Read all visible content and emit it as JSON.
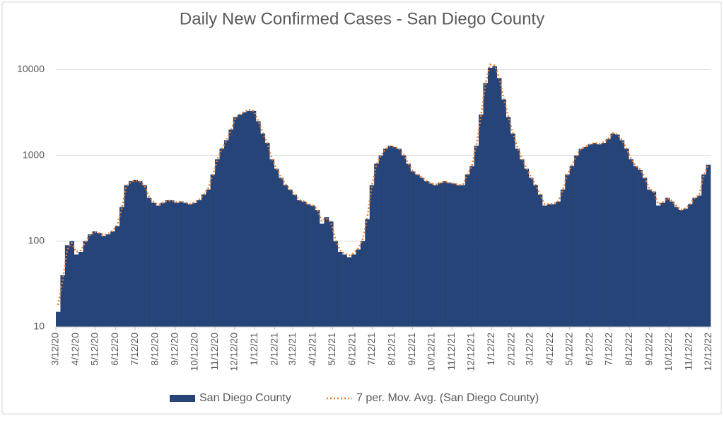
{
  "chart_data": {
    "type": "bar",
    "title": "Daily New Confirmed Cases - San Diego County",
    "log_scale": true,
    "grid": true,
    "legend": "bottom",
    "ylim": [
      10,
      20000
    ],
    "yticks": [
      10,
      100,
      1000,
      10000
    ],
    "xlim": [
      "3/12/20",
      "12/15/22"
    ],
    "xticks": [
      "3/12/20",
      "4/12/20",
      "5/12/20",
      "6/12/20",
      "7/12/20",
      "8/12/20",
      "9/12/20",
      "10/12/20",
      "11/12/20",
      "12/12/20",
      "1/12/21",
      "2/12/21",
      "3/12/21",
      "4/12/21",
      "5/12/21",
      "6/12/21",
      "7/12/21",
      "8/12/21",
      "9/12/21",
      "10/12/21",
      "11/12/21",
      "12/12/21",
      "1/12/22",
      "2/12/22",
      "3/12/22",
      "4/12/22",
      "5/12/22",
      "6/12/22",
      "7/12/22",
      "8/12/22",
      "9/12/22",
      "10/12/22",
      "11/12/22",
      "12/12/22"
    ],
    "x": [
      "3/12/20",
      "3/19/20",
      "3/26/20",
      "4/2/20",
      "4/9/20",
      "4/16/20",
      "4/23/20",
      "4/30/20",
      "5/7/20",
      "5/14/20",
      "5/21/20",
      "5/28/20",
      "6/4/20",
      "6/11/20",
      "6/18/20",
      "6/25/20",
      "7/2/20",
      "7/9/20",
      "7/16/20",
      "7/23/20",
      "7/30/20",
      "8/6/20",
      "8/13/20",
      "8/20/20",
      "8/27/20",
      "9/3/20",
      "9/10/20",
      "9/17/20",
      "9/24/20",
      "10/1/20",
      "10/8/20",
      "10/15/20",
      "10/22/20",
      "10/29/20",
      "11/5/20",
      "11/12/20",
      "11/19/20",
      "11/26/20",
      "12/3/20",
      "12/10/20",
      "12/17/20",
      "12/24/20",
      "12/31/20",
      "1/7/21",
      "1/14/21",
      "1/21/21",
      "1/28/21",
      "2/4/21",
      "2/11/21",
      "2/18/21",
      "2/25/21",
      "3/4/21",
      "3/11/21",
      "3/18/21",
      "3/25/21",
      "4/1/21",
      "4/8/21",
      "4/15/21",
      "4/22/21",
      "4/29/21",
      "5/6/21",
      "5/13/21",
      "5/20/21",
      "5/27/21",
      "6/3/21",
      "6/10/21",
      "6/17/21",
      "6/24/21",
      "7/1/21",
      "7/8/21",
      "7/15/21",
      "7/22/21",
      "7/29/21",
      "8/5/21",
      "8/12/21",
      "8/19/21",
      "8/26/21",
      "9/2/21",
      "9/9/21",
      "9/16/21",
      "9/23/21",
      "9/30/21",
      "10/7/21",
      "10/14/21",
      "10/21/21",
      "10/28/21",
      "11/4/21",
      "11/11/21",
      "11/18/21",
      "11/25/21",
      "12/2/21",
      "12/9/21",
      "12/16/21",
      "12/23/21",
      "12/30/21",
      "1/6/22",
      "1/13/22",
      "1/20/22",
      "1/27/22",
      "2/3/22",
      "2/10/22",
      "2/17/22",
      "2/24/22",
      "3/3/22",
      "3/10/22",
      "3/17/22",
      "3/24/22",
      "3/31/22",
      "4/7/22",
      "4/14/22",
      "4/21/22",
      "4/28/22",
      "5/5/22",
      "5/12/22",
      "5/19/22",
      "5/26/22",
      "6/2/22",
      "6/9/22",
      "6/16/22",
      "6/23/22",
      "6/30/22",
      "7/7/22",
      "7/14/22",
      "7/21/22",
      "7/28/22",
      "8/4/22",
      "8/11/22",
      "8/18/22",
      "8/25/22",
      "9/1/22",
      "9/8/22",
      "9/15/22",
      "9/22/22",
      "9/29/22",
      "10/6/22",
      "10/13/22",
      "10/20/22",
      "10/27/22",
      "11/3/22",
      "11/10/22",
      "11/17/22",
      "11/24/22",
      "12/1/22",
      "12/8/22"
    ],
    "series": [
      {
        "name": "San Diego County",
        "color": "#264478",
        "values": [
          15,
          40,
          90,
          100,
          70,
          75,
          100,
          120,
          130,
          125,
          115,
          120,
          130,
          150,
          250,
          450,
          500,
          520,
          500,
          450,
          320,
          280,
          260,
          280,
          300,
          300,
          280,
          290,
          280,
          270,
          280,
          300,
          350,
          400,
          600,
          900,
          1200,
          1500,
          2000,
          2800,
          3000,
          3200,
          3300,
          3300,
          2500,
          1800,
          1400,
          900,
          700,
          550,
          450,
          400,
          350,
          300,
          290,
          270,
          260,
          230,
          160,
          190,
          170,
          100,
          75,
          70,
          65,
          70,
          80,
          100,
          180,
          450,
          800,
          1000,
          1200,
          1300,
          1250,
          1200,
          1000,
          800,
          650,
          600,
          550,
          500,
          470,
          450,
          480,
          500,
          480,
          470,
          450,
          450,
          600,
          750,
          1300,
          3000,
          7000,
          10500,
          11000,
          8000,
          4500,
          2800,
          1800,
          1200,
          900,
          700,
          550,
          450,
          350,
          260,
          270,
          270,
          290,
          400,
          600,
          750,
          1000,
          1200,
          1250,
          1350,
          1400,
          1350,
          1400,
          1550,
          1800,
          1750,
          1500,
          1200,
          900,
          750,
          680,
          550,
          400,
          380,
          260,
          280,
          320,
          290,
          250,
          230,
          240,
          270,
          320,
          340,
          600,
          780
        ]
      },
      {
        "name": "7 per. Mov. Avg. (San Diego County)",
        "color": "#ed7d31",
        "values": [
          18,
          35,
          80,
          95,
          75,
          78,
          98,
          118,
          128,
          124,
          118,
          122,
          132,
          155,
          240,
          430,
          490,
          510,
          495,
          440,
          330,
          285,
          265,
          280,
          295,
          298,
          285,
          288,
          282,
          272,
          282,
          305,
          345,
          410,
          590,
          880,
          1180,
          1480,
          1950,
          2700,
          3000,
          3250,
          3400,
          3300,
          2550,
          1850,
          1400,
          920,
          710,
          560,
          460,
          405,
          355,
          305,
          292,
          272,
          262,
          235,
          170,
          185,
          165,
          105,
          78,
          72,
          68,
          72,
          82,
          105,
          190,
          440,
          780,
          1000,
          1180,
          1280,
          1260,
          1200,
          1010,
          810,
          660,
          600,
          555,
          505,
          475,
          455,
          478,
          498,
          482,
          470,
          455,
          455,
          590,
          760,
          1300,
          2900,
          6800,
          11500,
          11200,
          8200,
          4600,
          2900,
          1850,
          1250,
          920,
          720,
          560,
          455,
          355,
          270,
          272,
          272,
          292,
          395,
          590,
          760,
          990,
          1190,
          1260,
          1350,
          1400,
          1360,
          1420,
          1560,
          1820,
          1760,
          1510,
          1210,
          910,
          760,
          690,
          560,
          410,
          380,
          270,
          285,
          318,
          295,
          255,
          232,
          242,
          268,
          318,
          342,
          590,
          770
        ]
      }
    ]
  }
}
